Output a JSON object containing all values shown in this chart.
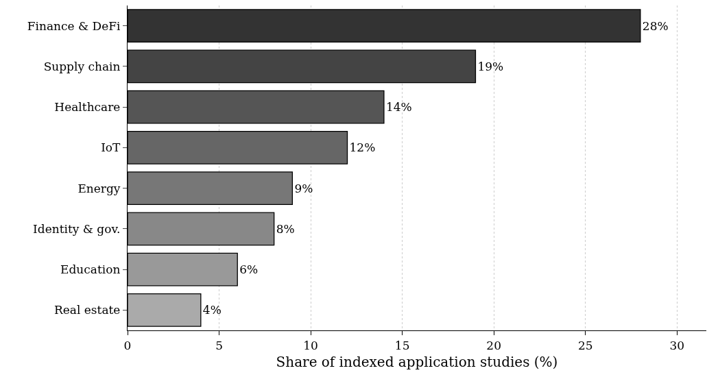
{
  "chart_data": {
    "type": "bar",
    "orientation": "horizontal",
    "xlabel": "Share of indexed application studies (%)",
    "categories": [
      "Finance & DeFi",
      "Supply chain",
      "Healthcare",
      "IoT",
      "Energy",
      "Identity & gov.",
      "Education",
      "Real estate"
    ],
    "values": [
      28,
      19,
      14,
      12,
      9,
      8,
      6,
      4
    ],
    "value_labels": [
      "28%",
      "19%",
      "14%",
      "12%",
      "9%",
      "8%",
      "6%",
      "4%"
    ],
    "colors": [
      "#333333",
      "#444444",
      "#555555",
      "#666666",
      "#777777",
      "#888888",
      "#999999",
      "#aaaaaa"
    ],
    "xlim": [
      0,
      31.6
    ],
    "xticks": [
      0,
      5,
      10,
      15,
      20,
      25,
      30
    ],
    "grid": "x",
    "legend": false
  }
}
